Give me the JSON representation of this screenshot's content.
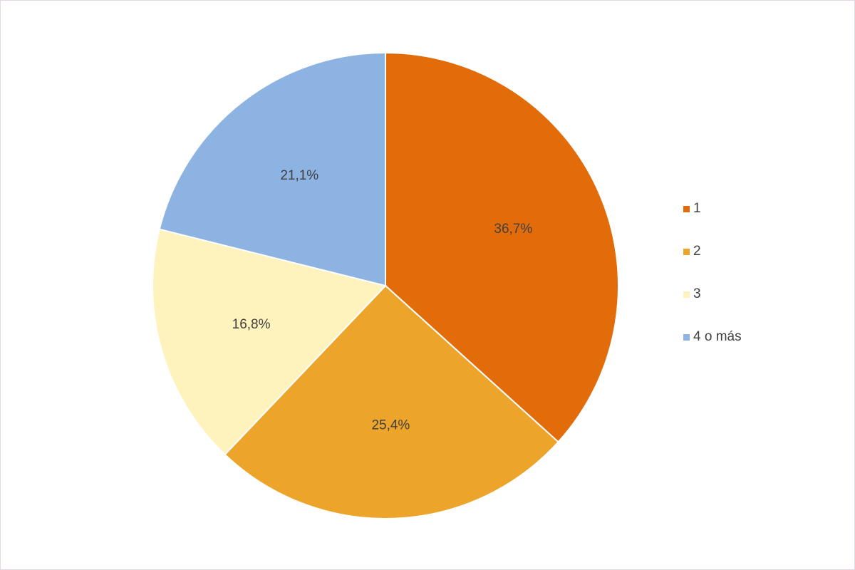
{
  "chart_data": {
    "type": "pie",
    "categories": [
      "1",
      "2",
      "3",
      "4 o más"
    ],
    "values": [
      36.7,
      25.4,
      16.8,
      21.1
    ],
    "data_labels": [
      "36,7%",
      "25,4%",
      "16,8%",
      "21,1%"
    ],
    "colors": [
      "#e36c0a",
      "#eda42a",
      "#fff3bd",
      "#8db3e2"
    ],
    "start_angle_deg": 0,
    "direction": "clockwise",
    "legend_position": "right",
    "title": ""
  }
}
